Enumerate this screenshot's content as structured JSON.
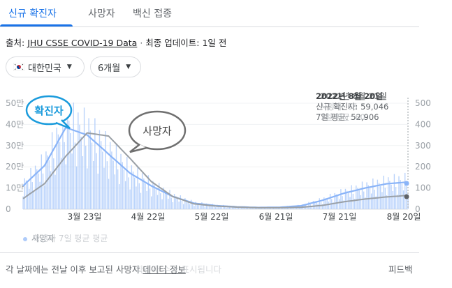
{
  "tabs": [
    {
      "label": "신규 확진자",
      "active": true
    },
    {
      "label": "사망자",
      "active": false
    },
    {
      "label": "백신 접종",
      "active": false
    }
  ],
  "source": {
    "prefix": "출처:",
    "link": "JHU CSSE COVID-19 Data",
    "separator": "·",
    "update_label": "최종 업데이트: 1일 전"
  },
  "filters": {
    "country": "대한민국",
    "period": "6개월"
  },
  "tooltip": {
    "date": "2022년 8월 20일",
    "line1": "신규 확진자: 59,046",
    "line2": "7일 평균: 52,906",
    "ghost_date": "2022년 8월 21일",
    "ghost_line1": "사망자: 65",
    "ghost_line2": "7일 평균: 60"
  },
  "annotations": {
    "cases_bubble": "확진자",
    "deaths_bubble": "사망자"
  },
  "legend": {
    "label": "사망자",
    "ghost": "확진자 7일 평균 평균"
  },
  "footer": {
    "text": "각 날짜에는 전날 이후 보고된 사망자 ",
    "ghost": "확진자 수가 표시됩니다",
    "link": "데이터 정보",
    "feedback": "피드백"
  },
  "chart_data": {
    "type": "bar",
    "x_ticks": [
      "3월 23일",
      "4월 22일",
      "5월 22일",
      "6월 21일",
      "7월 21일",
      "8월 20일"
    ],
    "y_left_ticks": [
      "0",
      "10만",
      "20만",
      "30만",
      "40만",
      "50만"
    ],
    "y_right_ticks": [
      "0",
      "100",
      "200",
      "300",
      "400",
      "500"
    ],
    "y_left_range": [
      0,
      500000
    ],
    "y_right_range": [
      0,
      500
    ],
    "colors": {
      "cases_bars": "#aecbfa",
      "cases_line": "#8ab4f8",
      "deaths_line": "#9aa0a6",
      "deaths_line_dark": "#5f6368",
      "tick_text": "#9aa0a6",
      "accent": "#1a73e8"
    },
    "series": [
      {
        "name": "신규 확진자 7일 평균",
        "axis": "left",
        "x_week": [
          0,
          2,
          4,
          6,
          8,
          10,
          12,
          14,
          16,
          18,
          20,
          22,
          24,
          26,
          28,
          30,
          32,
          34,
          36
        ],
        "values": [
          110000,
          205000,
          385000,
          350000,
          260000,
          170000,
          110000,
          60000,
          28000,
          17000,
          11000,
          8000,
          9000,
          16000,
          42000,
          75000,
          100000,
          120000,
          128000
        ]
      },
      {
        "name": "사망자 7일 평균",
        "axis": "right",
        "x_week": [
          0,
          2,
          4,
          6,
          8,
          10,
          12,
          14,
          16,
          18,
          20,
          22,
          24,
          26,
          28,
          30,
          32,
          34,
          36
        ],
        "values": [
          50,
          120,
          250,
          360,
          345,
          240,
          130,
          60,
          25,
          15,
          10,
          7,
          7,
          9,
          18,
          35,
          48,
          58,
          65
        ]
      }
    ]
  }
}
